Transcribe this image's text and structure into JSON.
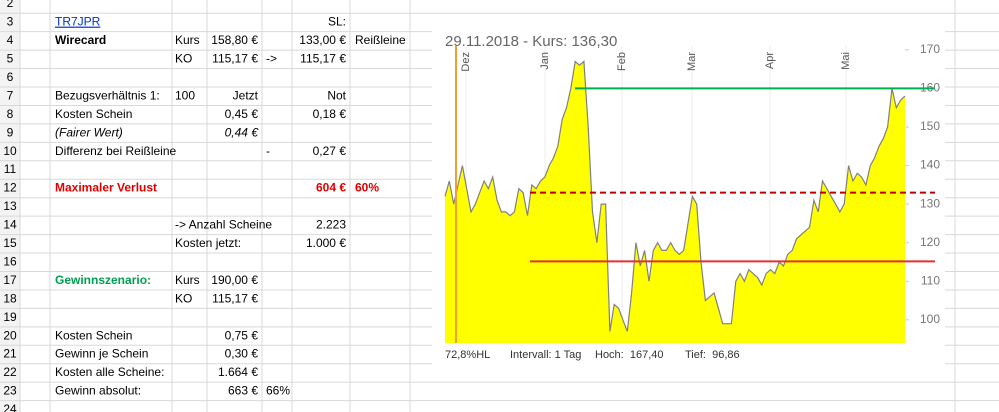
{
  "sheet": {
    "rows": [
      {
        "number": 2,
        "cells": []
      },
      {
        "number": 3,
        "cells": [
          "TR7JPR",
          null,
          null,
          null,
          "SL:"
        ]
      },
      {
        "number": 4,
        "cells": [
          "Wirecard",
          "Kurs",
          "158,80 €",
          null,
          "133,00 €",
          "Reißleine"
        ]
      },
      {
        "number": 5,
        "cells": [
          null,
          "KO",
          "115,17 €",
          "->",
          "115,17 €"
        ]
      },
      {
        "number": 6,
        "cells": []
      },
      {
        "number": 7,
        "cells": [
          "Bezugsverhältnis 1:",
          "100",
          "Jetzt",
          null,
          "Not"
        ]
      },
      {
        "number": 8,
        "cells": [
          "Kosten Schein",
          null,
          "0,45 €",
          null,
          "0,18 €"
        ]
      },
      {
        "number": 9,
        "cells": [
          "(Fairer Wert)",
          null,
          "0,44 €"
        ]
      },
      {
        "number": 10,
        "cells": [
          "Differenz bei Reißleine",
          null,
          null,
          "-",
          "0,27 €"
        ]
      },
      {
        "number": 11,
        "cells": []
      },
      {
        "number": 12,
        "cells": [
          "Maximaler Verlust",
          null,
          null,
          null,
          "604 €",
          "60%"
        ]
      },
      {
        "number": 13,
        "cells": []
      },
      {
        "number": 14,
        "cells": [
          null,
          "-> Anzahl Scheine",
          null,
          null,
          "2.223"
        ]
      },
      {
        "number": 15,
        "cells": [
          null,
          "Kosten jetzt:",
          null,
          null,
          "1.000 €"
        ]
      },
      {
        "number": 16,
        "cells": []
      },
      {
        "number": 17,
        "cells": [
          "Gewinnszenario:",
          "Kurs",
          "190,00 €"
        ]
      },
      {
        "number": 18,
        "cells": [
          null,
          "KO",
          "115,17 €"
        ]
      },
      {
        "number": 19,
        "cells": []
      },
      {
        "number": 20,
        "cells": [
          "Kosten Schein",
          null,
          "0,75 €"
        ]
      },
      {
        "number": 21,
        "cells": [
          "Gewinn je Schein",
          null,
          "0,30 €"
        ]
      },
      {
        "number": 22,
        "cells": [
          "Kosten alle Scheine:",
          null,
          "1.664 €"
        ]
      },
      {
        "number": 23,
        "cells": [
          "Gewinn absolut:",
          null,
          "663 €",
          "66%"
        ]
      },
      {
        "number": 24,
        "cells": []
      }
    ]
  },
  "chart_data": {
    "type": "area",
    "title": "29.11.2018  -  Kurs: 136,30",
    "month_labels": [
      "Dez",
      "Jan",
      "Feb",
      "Mar",
      "Apr",
      "Mai"
    ],
    "values": [
      132,
      136,
      130,
      135,
      140,
      134,
      128,
      130,
      133,
      136,
      134,
      137,
      131,
      128,
      128,
      127,
      128,
      134,
      133,
      127,
      135,
      134,
      136,
      137,
      140,
      142,
      145,
      152,
      155,
      160,
      167,
      166,
      167,
      150,
      128,
      120,
      130,
      130,
      97,
      104,
      103,
      100,
      97,
      107,
      120,
      114,
      118,
      110,
      118,
      120,
      118,
      118,
      120,
      118,
      117,
      118,
      125,
      132,
      130,
      115,
      105,
      106,
      107,
      103,
      99,
      99,
      99,
      110,
      112,
      110,
      113,
      112,
      111,
      109,
      112,
      113,
      112,
      115,
      114,
      117,
      118,
      121,
      122,
      123,
      124,
      131,
      128,
      136,
      134,
      132,
      130,
      128,
      130,
      140,
      136,
      138,
      137,
      135,
      140,
      142,
      145,
      147,
      150,
      160,
      155,
      157,
      158
    ],
    "color": "#ffff00",
    "line_color": "#808080",
    "ylim": [
      94,
      171
    ],
    "yticks": [
      100,
      110,
      120,
      130,
      140,
      150,
      160,
      170
    ],
    "reference_lines": [
      {
        "value": 160,
        "color": "#00b050",
        "style": "solid"
      },
      {
        "value": 133,
        "color": "#c00000",
        "style": "dashed"
      },
      {
        "value": 115.17,
        "color": "#e03030",
        "style": "solid"
      }
    ],
    "footer": [
      "72,8%HL",
      "Intervall: 1 Tag",
      "Hoch:  167,40",
      "Tief:  96,86"
    ]
  }
}
